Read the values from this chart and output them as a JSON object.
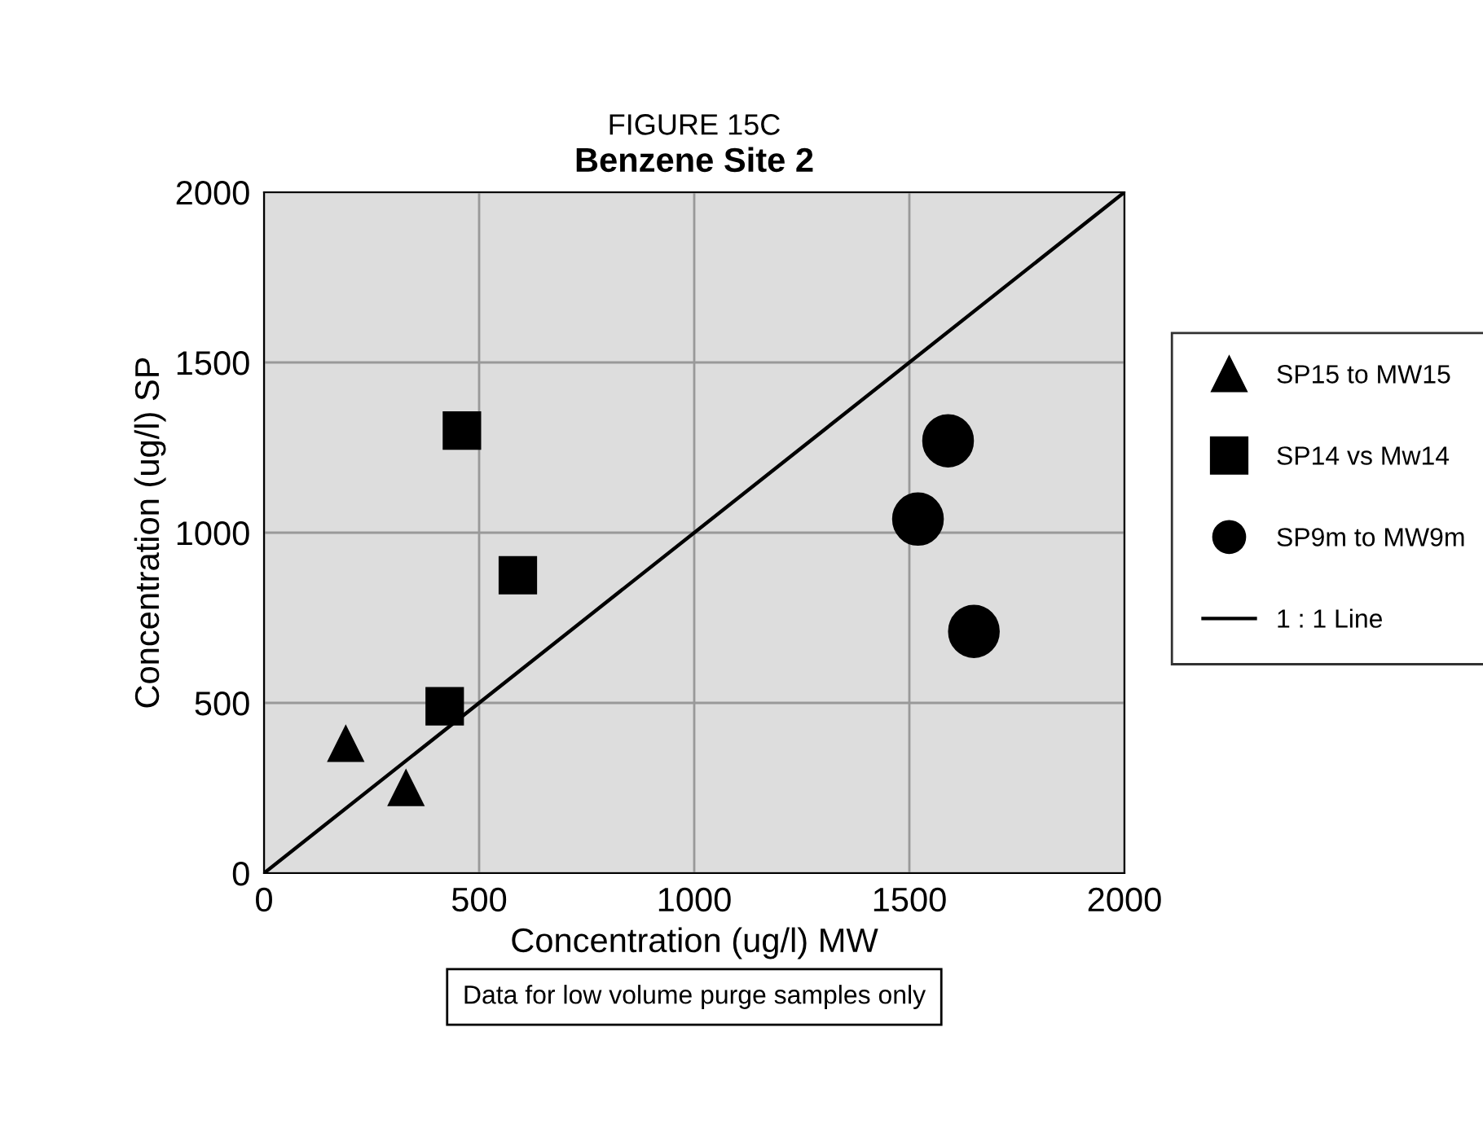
{
  "chart_data": {
    "type": "scatter",
    "title": "Benzene Site 2",
    "subtitle": "FIGURE 15C",
    "xlabel": "Concentration (ug/l) MW",
    "ylabel": "Concentration (ug/l) SP",
    "xlim": [
      0,
      2000
    ],
    "ylim": [
      0,
      2000
    ],
    "xticks": [
      0,
      500,
      1000,
      1500,
      2000
    ],
    "yticks": [
      0,
      500,
      1000,
      1500,
      2000
    ],
    "grid": true,
    "legend": "right",
    "series": [
      {
        "name": "SP15 to MW15",
        "color": "#000000",
        "marker": "triangle",
        "x": [
          190,
          330
        ],
        "values": [
          380,
          250
        ]
      },
      {
        "name": "SP14 vs Mw14",
        "color": "#000000",
        "marker": "square",
        "x": [
          460,
          590,
          420
        ],
        "values": [
          1300,
          875,
          490
        ]
      },
      {
        "name": "SP9m to MW9m",
        "color": "#000000",
        "marker": "circle",
        "x": [
          1590,
          1520,
          1650
        ],
        "values": [
          1270,
          1040,
          710
        ]
      },
      {
        "name": "1 : 1 Line",
        "color": "#000000",
        "type": "line",
        "marker": "none",
        "line_style": "solid",
        "x": [
          0,
          2000
        ],
        "values": [
          0,
          2000
        ]
      }
    ],
    "annotations": [
      "Data for low volume purge samples only"
    ]
  }
}
